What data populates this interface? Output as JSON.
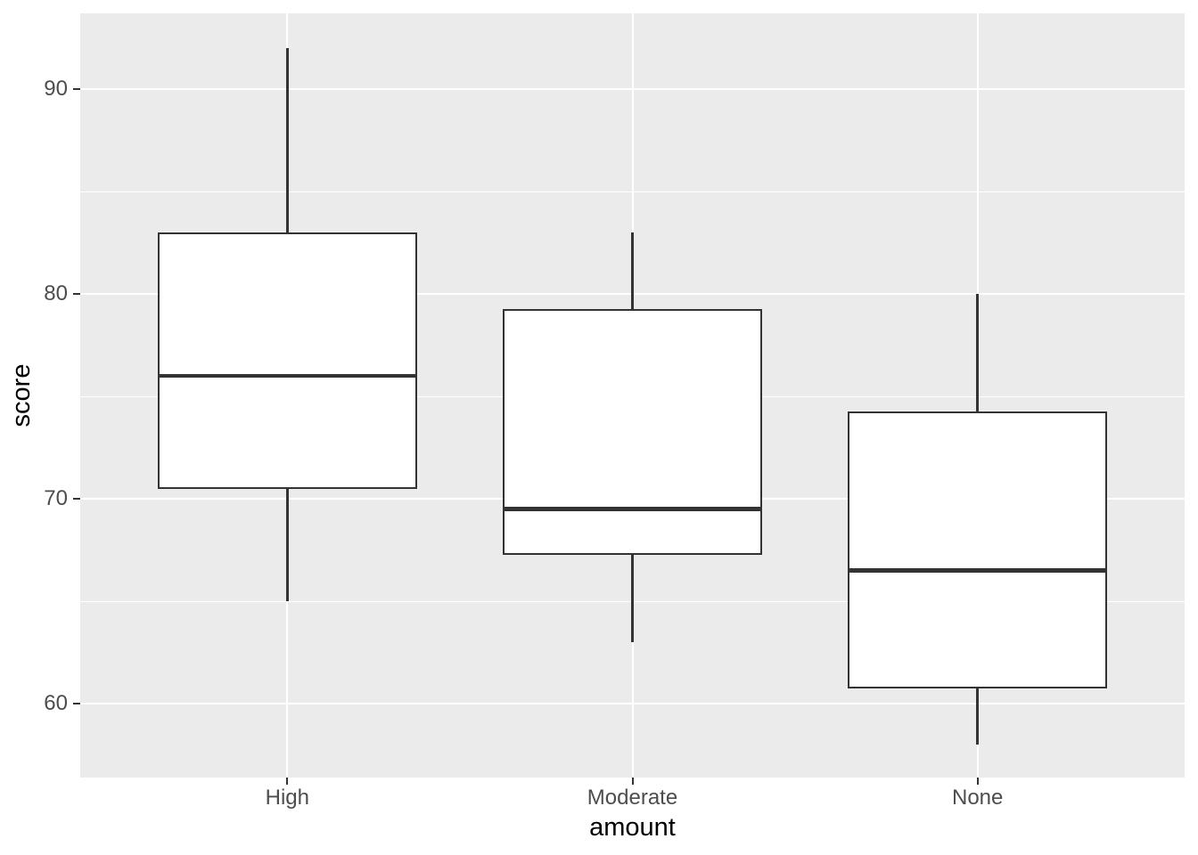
{
  "chart_data": {
    "type": "boxplot",
    "title": "",
    "xlabel": "amount",
    "ylabel": "score",
    "categories": [
      "High",
      "Moderate",
      "None"
    ],
    "series": [
      {
        "category": "High",
        "whisker_low": 65,
        "q1": 70.5,
        "median": 76,
        "q3": 83,
        "whisker_high": 92,
        "outliers": []
      },
      {
        "category": "Moderate",
        "whisker_low": 63,
        "q1": 67.25,
        "median": 69.5,
        "q3": 79.25,
        "whisker_high": 83,
        "outliers": []
      },
      {
        "category": "None",
        "whisker_low": 58,
        "q1": 60.75,
        "median": 66.5,
        "q3": 74.25,
        "whisker_high": 80,
        "outliers": []
      }
    ],
    "y_ticks": [
      60,
      70,
      80,
      90
    ],
    "y_minor_gridlines": [
      65,
      75,
      85
    ],
    "ylim": [
      56.4,
      93.7
    ],
    "grid": true,
    "legend": false,
    "theme": {
      "panel_bg": "#EBEBEB",
      "grid_major_color": "#FFFFFF",
      "grid_minor_color": "#FFFFFF",
      "box_fill": "#FFFFFF",
      "box_stroke": "#333333",
      "tick_mark_color": "#333333",
      "tick_label_color": "#4D4D4D",
      "axis_title_color": "#000000",
      "outer_bg": "#FFFFFF"
    }
  }
}
